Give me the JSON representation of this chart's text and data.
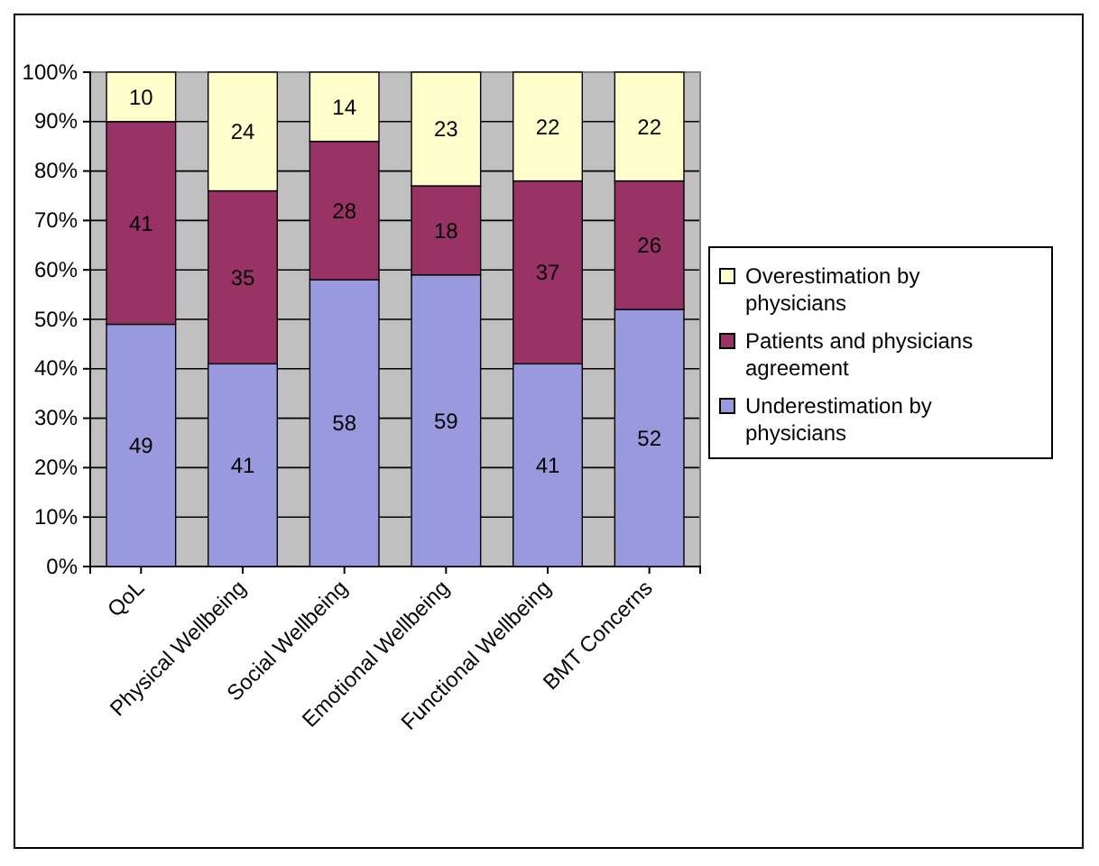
{
  "chart_data": {
    "type": "bar",
    "stacked": true,
    "categories": [
      "QoL",
      "Physical Wellbeing",
      "Social Wellbeing",
      "Emotional Wellbeing",
      "Functional Wellbeing",
      "BMT Concerns"
    ],
    "series": [
      {
        "name": "Underestimation by physicians",
        "color": "#9999dd",
        "values": [
          49,
          41,
          58,
          59,
          41,
          52
        ]
      },
      {
        "name": "Patients and physicians agreement",
        "color": "#993366",
        "values": [
          41,
          35,
          28,
          18,
          37,
          26
        ]
      },
      {
        "name": "Overestimation by physicians",
        "color": "#ffffcc",
        "values": [
          10,
          24,
          14,
          23,
          22,
          22
        ]
      }
    ],
    "ylim": [
      0,
      100
    ],
    "yticks": [
      {
        "value": 0,
        "label": "0%"
      },
      {
        "value": 10,
        "label": "10%"
      },
      {
        "value": 20,
        "label": "20%"
      },
      {
        "value": 30,
        "label": "30%"
      },
      {
        "value": 40,
        "label": "40%"
      },
      {
        "value": 50,
        "label": "50%"
      },
      {
        "value": 60,
        "label": "60%"
      },
      {
        "value": 70,
        "label": "70%"
      },
      {
        "value": 80,
        "label": "80%"
      },
      {
        "value": 90,
        "label": "90%"
      },
      {
        "value": 100,
        "label": "100%"
      }
    ],
    "grid": "y",
    "legend": "right",
    "data_labels": true
  }
}
